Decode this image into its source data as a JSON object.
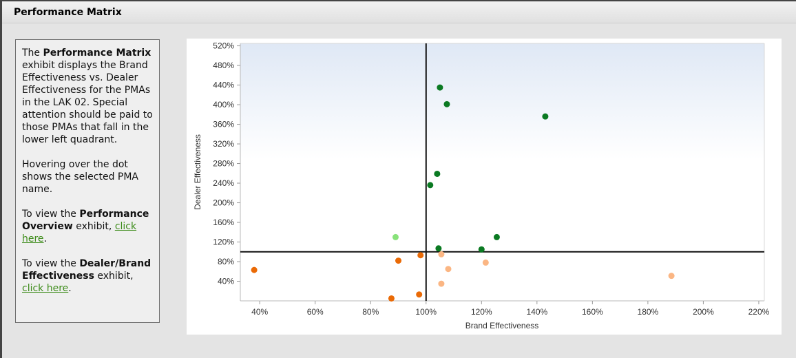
{
  "panel": {
    "title": "Performance Matrix"
  },
  "info": {
    "p1_a": "The ",
    "p1_b": "Performance Matrix",
    "p1_c": " exhibit displays the Brand Effectiveness vs. Dealer Effectiveness for the PMAs in the LAK 02. Special attention should be paid to those PMAs that fall in the lower left quadrant.",
    "p2": "Hovering over the dot shows the selected PMA name.",
    "p3_a": "To view the ",
    "p3_b": "Performance Overview",
    "p3_c": " exhibit, ",
    "p3_link": "click here",
    "p3_d": ".",
    "p4_a": "To view the ",
    "p4_b": "Dealer/Brand Effectiveness",
    "p4_c": " exhibit, ",
    "p4_link": "click here",
    "p4_d": "."
  },
  "chart_data": {
    "type": "scatter",
    "title": "",
    "xlabel": "Brand Effectiveness",
    "ylabel": "Dealer Effectiveness",
    "xlim": [
      33,
      222
    ],
    "ylim": [
      0,
      525
    ],
    "x_ticks": [
      40,
      60,
      80,
      100,
      120,
      140,
      160,
      180,
      200,
      220
    ],
    "x_tick_labels": [
      "40%",
      "60%",
      "80%",
      "100%",
      "120%",
      "140%",
      "160%",
      "180%",
      "200%",
      "220%"
    ],
    "y_ticks": [
      40,
      80,
      120,
      160,
      200,
      240,
      280,
      320,
      360,
      400,
      440,
      480,
      520
    ],
    "y_tick_labels": [
      "40%",
      "80%",
      "120%",
      "160%",
      "200%",
      "240%",
      "280%",
      "320%",
      "360%",
      "400%",
      "440%",
      "480%",
      "520%"
    ],
    "reference_lines": {
      "x": 100,
      "y": 100
    },
    "grid": false,
    "colors": {
      "dark_green": "#0b7a22",
      "light_green": "#88e27a",
      "dark_orange": "#ea6a06",
      "light_orange": "#fbb683"
    },
    "points": [
      {
        "x": 105,
        "y": 435,
        "color": "dark_green"
      },
      {
        "x": 107.5,
        "y": 401,
        "color": "dark_green"
      },
      {
        "x": 143,
        "y": 376,
        "color": "dark_green"
      },
      {
        "x": 104,
        "y": 259,
        "color": "dark_green"
      },
      {
        "x": 101.5,
        "y": 236,
        "color": "dark_green"
      },
      {
        "x": 125.5,
        "y": 130,
        "color": "dark_green"
      },
      {
        "x": 104.5,
        "y": 107,
        "color": "dark_green"
      },
      {
        "x": 120,
        "y": 105,
        "color": "dark_green"
      },
      {
        "x": 89,
        "y": 130,
        "color": "light_green"
      },
      {
        "x": 98,
        "y": 93,
        "color": "dark_orange"
      },
      {
        "x": 90,
        "y": 82,
        "color": "dark_orange"
      },
      {
        "x": 38,
        "y": 63,
        "color": "dark_orange"
      },
      {
        "x": 97.5,
        "y": 13,
        "color": "dark_orange"
      },
      {
        "x": 87.5,
        "y": 5,
        "color": "dark_orange"
      },
      {
        "x": 105.5,
        "y": 95,
        "color": "light_orange"
      },
      {
        "x": 121.5,
        "y": 78,
        "color": "light_orange"
      },
      {
        "x": 108,
        "y": 65,
        "color": "light_orange"
      },
      {
        "x": 105.5,
        "y": 35,
        "color": "light_orange"
      },
      {
        "x": 188.5,
        "y": 51,
        "color": "light_orange"
      }
    ]
  }
}
